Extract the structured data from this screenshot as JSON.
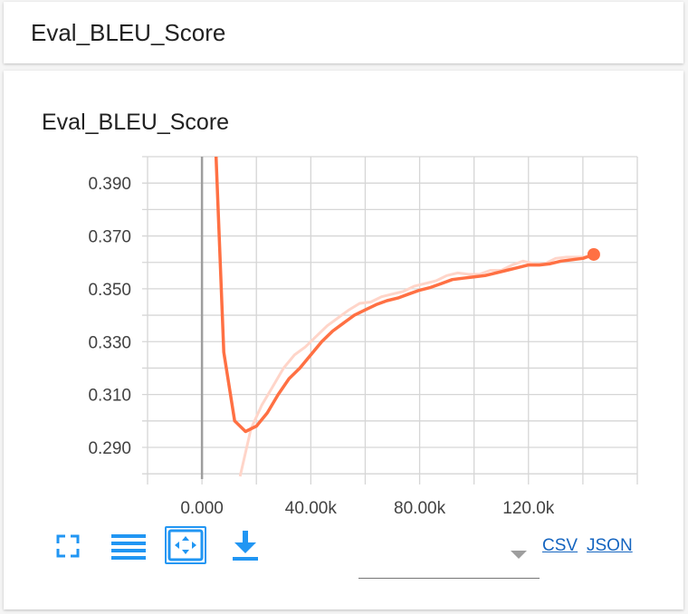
{
  "header": {
    "title": "Eval_BLEU_Score"
  },
  "chart_title": "Eval_BLEU_Score",
  "toolbar": {
    "fullscreen_icon": "fullscreen-icon",
    "list_icon": "list-icon",
    "fit_icon": "fit-domain-icon",
    "download_icon": "download-icon"
  },
  "downloads": {
    "csv_label": "CSV",
    "json_label": "JSON"
  },
  "colors": {
    "smoothed": "#ff7043",
    "raw": "#ffd5c9",
    "accent": "#2196f3"
  },
  "chart_data": {
    "type": "line",
    "title": "Eval_BLEU_Score",
    "xlabel": "",
    "ylabel": "",
    "xlim": [
      -20000,
      160000
    ],
    "ylim": [
      0.278,
      0.4
    ],
    "x_ticks": [
      0,
      40000,
      80000,
      120000
    ],
    "x_tick_labels": [
      "0.000",
      "40.00k",
      "80.00k",
      "120.0k"
    ],
    "y_ticks": [
      0.29,
      0.31,
      0.33,
      0.35,
      0.37,
      0.39
    ],
    "y_tick_labels": [
      "0.290",
      "0.310",
      "0.330",
      "0.350",
      "0.370",
      "0.390"
    ],
    "grid": true,
    "series": [
      {
        "role": "smoothed",
        "x": [
          5000,
          8000,
          12000,
          16000,
          20000,
          24000,
          28000,
          32000,
          36000,
          40000,
          44000,
          48000,
          52000,
          56000,
          60000,
          64000,
          68000,
          72000,
          76000,
          80000,
          84000,
          88000,
          92000,
          96000,
          100000,
          104000,
          108000,
          112000,
          116000,
          120000,
          124000,
          128000,
          132000,
          136000,
          140000,
          144000
        ],
        "y": [
          0.405,
          0.326,
          0.3,
          0.296,
          0.298,
          0.303,
          0.31,
          0.316,
          0.32,
          0.325,
          0.33,
          0.334,
          0.337,
          0.34,
          0.342,
          0.344,
          0.3455,
          0.3465,
          0.348,
          0.3495,
          0.3505,
          0.352,
          0.3535,
          0.354,
          0.3545,
          0.355,
          0.356,
          0.357,
          0.358,
          0.359,
          0.359,
          0.3595,
          0.3605,
          0.361,
          0.3615,
          0.363
        ]
      },
      {
        "role": "raw",
        "x": [
          14000,
          18000,
          22000,
          26000,
          30000,
          34000,
          38000,
          42000,
          46000,
          50000,
          54000,
          58000,
          62000,
          66000,
          70000,
          74000,
          78000,
          82000,
          86000,
          90000,
          94000,
          98000,
          102000,
          106000,
          110000,
          114000,
          118000,
          122000,
          126000,
          130000,
          134000,
          138000,
          142000,
          146000
        ],
        "y": [
          0.279,
          0.297,
          0.306,
          0.313,
          0.32,
          0.325,
          0.328,
          0.332,
          0.336,
          0.339,
          0.342,
          0.3445,
          0.345,
          0.347,
          0.348,
          0.349,
          0.351,
          0.352,
          0.353,
          0.355,
          0.356,
          0.3555,
          0.3555,
          0.357,
          0.357,
          0.359,
          0.3605,
          0.3595,
          0.3595,
          0.3615,
          0.362,
          0.362,
          0.362,
          0.3635
        ]
      }
    ],
    "last_point": {
      "x": 144000,
      "y": 0.363
    }
  }
}
